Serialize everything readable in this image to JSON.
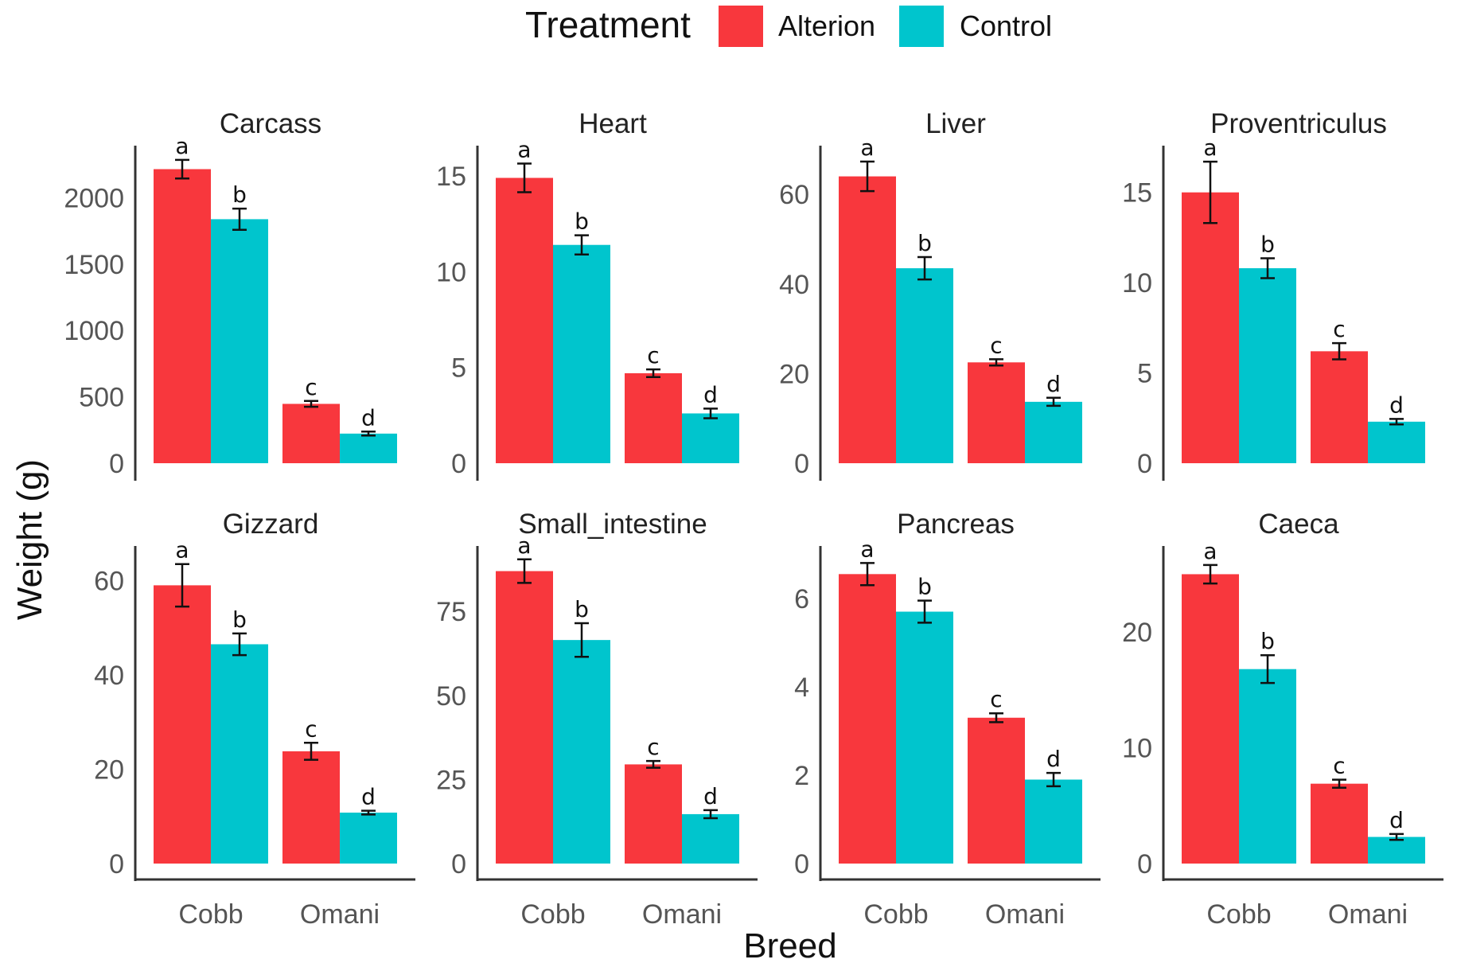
{
  "chart_data": {
    "type": "bar",
    "legend": {
      "title": "Treatment",
      "position": "top-center",
      "entries": [
        {
          "name": "Alterion",
          "color": "#F8373D"
        },
        {
          "name": "Control",
          "color": "#00C5CD"
        }
      ]
    },
    "xlabel": "Breed",
    "ylabel": "Weight (g)",
    "categories": [
      "Cobb",
      "Omani"
    ],
    "panels": [
      {
        "title": "Carcass",
        "ylim": [
          0,
          2380
        ],
        "ticks": [
          0,
          500,
          1000,
          1500,
          2000
        ],
        "bars": [
          {
            "category": "Cobb",
            "series": "Alterion",
            "value": 2215,
            "error": 70,
            "label": "a"
          },
          {
            "category": "Cobb",
            "series": "Control",
            "value": 1838,
            "error": 80,
            "label": "b"
          },
          {
            "category": "Omani",
            "series": "Alterion",
            "value": 447,
            "error": 22,
            "label": "c"
          },
          {
            "category": "Omani",
            "series": "Control",
            "value": 223,
            "error": 15,
            "label": "d"
          }
        ]
      },
      {
        "title": "Heart",
        "ylim": [
          0,
          16.5
        ],
        "ticks": [
          0,
          5,
          10,
          15
        ],
        "bars": [
          {
            "category": "Cobb",
            "series": "Alterion",
            "value": 14.9,
            "error": 0.75,
            "label": "a"
          },
          {
            "category": "Cobb",
            "series": "Control",
            "value": 11.4,
            "error": 0.5,
            "label": "b"
          },
          {
            "category": "Omani",
            "series": "Alterion",
            "value": 4.7,
            "error": 0.2,
            "label": "c"
          },
          {
            "category": "Omani",
            "series": "Control",
            "value": 2.6,
            "error": 0.25,
            "label": "d"
          }
        ]
      },
      {
        "title": "Liver",
        "ylim": [
          0,
          70.5
        ],
        "ticks": [
          0,
          20,
          40,
          60
        ],
        "bars": [
          {
            "category": "Cobb",
            "series": "Alterion",
            "value": 64,
            "error": 3.3,
            "label": "a"
          },
          {
            "category": "Cobb",
            "series": "Control",
            "value": 43.5,
            "error": 2.5,
            "label": "b"
          },
          {
            "category": "Omani",
            "series": "Alterion",
            "value": 22.5,
            "error": 0.7,
            "label": "c"
          },
          {
            "category": "Omani",
            "series": "Control",
            "value": 13.7,
            "error": 0.9,
            "label": "d"
          }
        ]
      },
      {
        "title": "Proventriculus",
        "ylim": [
          0,
          17.5
        ],
        "ticks": [
          0,
          5,
          10,
          15
        ],
        "bars": [
          {
            "category": "Cobb",
            "series": "Alterion",
            "value": 15,
            "error": 1.7,
            "label": "a"
          },
          {
            "category": "Cobb",
            "series": "Control",
            "value": 10.8,
            "error": 0.55,
            "label": "b"
          },
          {
            "category": "Omani",
            "series": "Alterion",
            "value": 6.2,
            "error": 0.45,
            "label": "c"
          },
          {
            "category": "Omani",
            "series": "Control",
            "value": 2.3,
            "error": 0.15,
            "label": "d"
          }
        ]
      },
      {
        "title": "Gizzard",
        "ylim": [
          0,
          67
        ],
        "ticks": [
          0,
          20,
          40,
          60
        ],
        "bars": [
          {
            "category": "Cobb",
            "series": "Alterion",
            "value": 59,
            "error": 4.5,
            "label": "a"
          },
          {
            "category": "Cobb",
            "series": "Control",
            "value": 46.5,
            "error": 2.3,
            "label": "b"
          },
          {
            "category": "Omani",
            "series": "Alterion",
            "value": 23.8,
            "error": 1.8,
            "label": "c"
          },
          {
            "category": "Omani",
            "series": "Control",
            "value": 10.8,
            "error": 0.4,
            "label": "d"
          }
        ]
      },
      {
        "title": "Small_intestine",
        "ylim": [
          0,
          94
        ],
        "ticks": [
          0,
          25,
          50,
          75
        ],
        "bars": [
          {
            "category": "Cobb",
            "series": "Alterion",
            "value": 87,
            "error": 3.5,
            "label": "a"
          },
          {
            "category": "Cobb",
            "series": "Control",
            "value": 66.5,
            "error": 5,
            "label": "b"
          },
          {
            "category": "Omani",
            "series": "Alterion",
            "value": 29.5,
            "error": 1,
            "label": "c"
          },
          {
            "category": "Omani",
            "series": "Control",
            "value": 14.7,
            "error": 1.2,
            "label": "d"
          }
        ]
      },
      {
        "title": "Pancreas",
        "ylim": [
          0,
          7.15
        ],
        "ticks": [
          0,
          2,
          4,
          6
        ],
        "bars": [
          {
            "category": "Cobb",
            "series": "Alterion",
            "value": 6.55,
            "error": 0.25,
            "label": "a"
          },
          {
            "category": "Cobb",
            "series": "Control",
            "value": 5.7,
            "error": 0.25,
            "label": "b"
          },
          {
            "category": "Omani",
            "series": "Alterion",
            "value": 3.3,
            "error": 0.1,
            "label": "c"
          },
          {
            "category": "Omani",
            "series": "Control",
            "value": 1.9,
            "error": 0.15,
            "label": "d"
          }
        ]
      },
      {
        "title": "Caeca",
        "ylim": [
          0,
          27.3
        ],
        "ticks": [
          0,
          10,
          20
        ],
        "bars": [
          {
            "category": "Cobb",
            "series": "Alterion",
            "value": 25,
            "error": 0.8,
            "label": "a"
          },
          {
            "category": "Cobb",
            "series": "Control",
            "value": 16.8,
            "error": 1.2,
            "label": "b"
          },
          {
            "category": "Omani",
            "series": "Alterion",
            "value": 6.9,
            "error": 0.35,
            "label": "c"
          },
          {
            "category": "Omani",
            "series": "Control",
            "value": 2.3,
            "error": 0.25,
            "label": "d"
          }
        ]
      }
    ]
  }
}
